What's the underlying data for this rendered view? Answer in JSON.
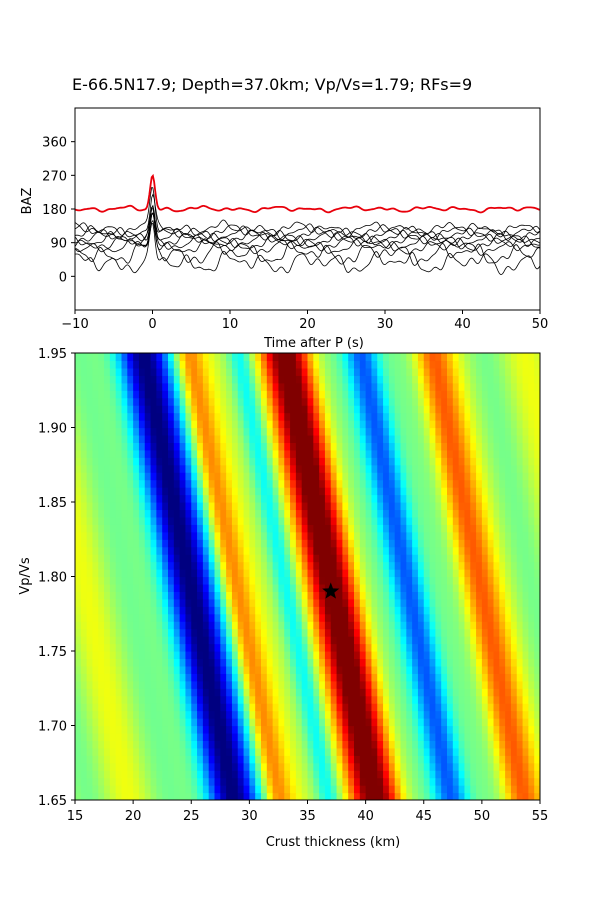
{
  "title": "E-66.5N17.9; Depth=37.0km; Vp/Vs=1.79; RFs=9",
  "chart_data": [
    {
      "type": "line",
      "xlabel": "Time after P (s)",
      "ylabel": "BAZ",
      "xlim": [
        -10,
        50
      ],
      "ylim": [
        -90,
        450
      ],
      "xticks": [
        "−10",
        "0",
        "10",
        "20",
        "30",
        "40",
        "50"
      ],
      "xtick_values": [
        -10,
        0,
        10,
        20,
        30,
        40,
        50
      ],
      "yticks": [
        "0",
        "90",
        "180",
        "270",
        "360"
      ],
      "ytick_values": [
        0,
        90,
        180,
        270,
        360
      ],
      "stacked_trace": {
        "color": "#e8000b",
        "baseline": 180,
        "peak_time": 0,
        "peak_value": 270
      },
      "rf_traces": [
        {
          "baseline": 36
        },
        {
          "baseline": 60
        },
        {
          "baseline": 78
        },
        {
          "baseline": 88
        },
        {
          "baseline": 96
        },
        {
          "baseline": 104
        },
        {
          "baseline": 112
        },
        {
          "baseline": 120
        },
        {
          "baseline": 128
        }
      ],
      "trace_color": "#000000"
    },
    {
      "type": "heatmap",
      "xlabel": "Crust thickness (km)",
      "ylabel": "Vp/Vs",
      "xlim": [
        15,
        55
      ],
      "ylim": [
        1.65,
        1.95
      ],
      "xticks": [
        "15",
        "20",
        "25",
        "30",
        "35",
        "40",
        "45",
        "50",
        "55"
      ],
      "xtick_values": [
        15,
        20,
        25,
        30,
        35,
        40,
        45,
        50,
        55
      ],
      "yticks": [
        "1.65",
        "1.70",
        "1.75",
        "1.80",
        "1.85",
        "1.90",
        "1.95"
      ],
      "ytick_values": [
        1.65,
        1.7,
        1.75,
        1.8,
        1.85,
        1.9,
        1.95
      ],
      "colormap": "jet",
      "best_fit": {
        "thickness_km": 37.0,
        "vpvs": 1.79,
        "marker": "star"
      }
    }
  ]
}
